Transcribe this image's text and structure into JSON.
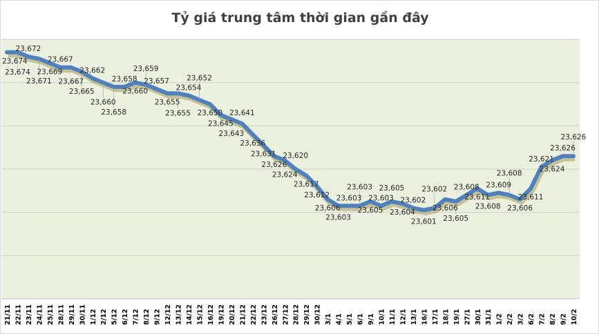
{
  "chart_data": {
    "type": "line",
    "title": "Tỷ giá trung tâm thời gian gần đây",
    "xlabel": "",
    "ylabel": "",
    "ylim": [
      23560,
      23680
    ],
    "grid": true,
    "legend": "none",
    "line_color": "#4F81BD",
    "plot_background": "#EBF0DF",
    "categories": [
      "21/11",
      "22/11",
      "23/11",
      "24/11",
      "25/11",
      "28/11",
      "29/11",
      "30/11",
      "1/12",
      "2/12",
      "5/12",
      "6/12",
      "7/12",
      "8/12",
      "9/12",
      "12/12",
      "13/12",
      "14/12",
      "15/12",
      "16/12",
      "19/12",
      "20/12",
      "21/12",
      "22/12",
      "23/12",
      "26/12",
      "27/12",
      "28/12",
      "29/12",
      "30/12",
      "3/1",
      "4/1",
      "5/1",
      "6/1",
      "9/1",
      "10/1",
      "11/1",
      "12/1",
      "13/1",
      "16/1",
      "17/1",
      "18/1",
      "19/1",
      "27/1",
      "30/1",
      "31/1",
      "1/2",
      "2/2",
      "3/2",
      "6/2",
      "7/2",
      "8/2",
      "9/2",
      "10/2"
    ],
    "values": [
      23674,
      23674,
      23672,
      23671,
      23669,
      23667,
      23667,
      23665,
      23662,
      23660,
      23658,
      23658,
      23660,
      23659,
      23657,
      23655,
      23655,
      23654,
      23652,
      23650,
      23645,
      23643,
      23641,
      23636,
      23631,
      23626,
      23624,
      23620,
      23617,
      23612,
      23606,
      23603,
      23603,
      23603,
      23605,
      23603,
      23605,
      23604,
      23602,
      23601,
      23602,
      23606,
      23605,
      23608,
      23611,
      23608,
      23609,
      23608,
      23606,
      23611,
      23621,
      23624,
      23626,
      23626
    ],
    "data_labels": [
      "23,674",
      "23,674",
      "23,672",
      "23,671",
      "23,669",
      "23,667",
      "23,667",
      "23,665",
      "23,662",
      "23,660",
      "23,658",
      "23,658",
      "23,660",
      "23,659",
      "23,657",
      "23,655",
      "23,655",
      "23,654",
      "23,652",
      "23,650",
      "23,645",
      "23,643",
      "23,641",
      "23,636",
      "23,631",
      "23,626",
      "23,624",
      "23,620",
      "23,617",
      "23,612",
      "23,606",
      "23,603",
      "23,603",
      "23,603",
      "23,605",
      "23,603",
      "23,605",
      "23,604",
      "23,602",
      "23,601",
      "23,602",
      "23,606",
      "23,605",
      "23,608",
      "23,611",
      "23,608",
      "23,609",
      "23,608",
      "23,606",
      "23,611",
      "23,621",
      "23,624",
      "23,626",
      "23,626"
    ]
  }
}
